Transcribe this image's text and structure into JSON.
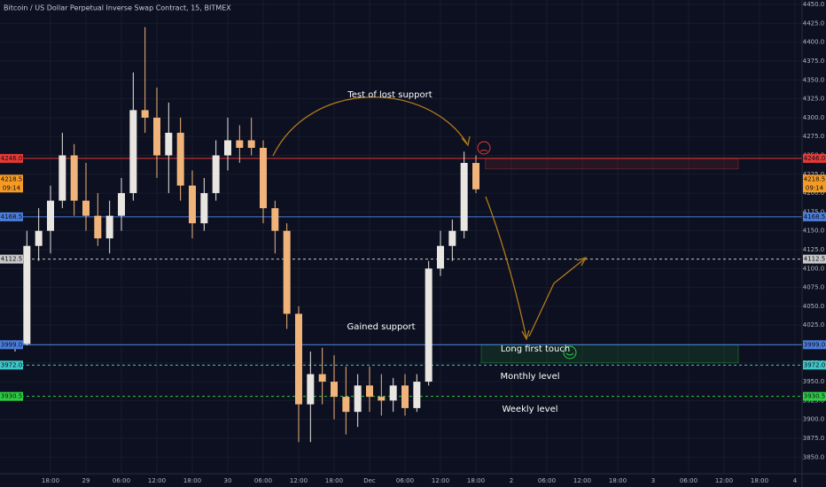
{
  "chart_data": {
    "type": "candlestick",
    "title": "Bitcoin / US Dollar Perpetual Inverse Swap Contract, 15, BITMEX",
    "x": [
      -6,
      -4,
      -2,
      0,
      2,
      4,
      6,
      8,
      10,
      12,
      14,
      16,
      18,
      20,
      22,
      24,
      26,
      28,
      30,
      32,
      34,
      36,
      38,
      40,
      42,
      44,
      46,
      48,
      50,
      52,
      54,
      56,
      58,
      60,
      62,
      64,
      66,
      68,
      70,
      72
    ],
    "open": [
      3998,
      4000,
      4130,
      4150,
      4190,
      4250,
      4190,
      4170,
      4140,
      4170,
      4200,
      4310,
      4300,
      4250,
      4280,
      4210,
      4160,
      4200,
      4250,
      4270,
      4270,
      4260,
      4180,
      4150,
      4040,
      3920,
      3960,
      3950,
      3930,
      3910,
      3945,
      3930,
      3925,
      3945,
      3915,
      3950,
      4100,
      4130,
      4150,
      4240
    ],
    "high": [
      4005,
      4150,
      4180,
      4210,
      4280,
      4265,
      4240,
      4200,
      4190,
      4220,
      4360,
      4420,
      4340,
      4320,
      4300,
      4230,
      4220,
      4270,
      4300,
      4290,
      4300,
      4270,
      4190,
      4160,
      4050,
      3990,
      3995,
      3985,
      3970,
      3960,
      3970,
      3960,
      3955,
      3960,
      3960,
      4110,
      4150,
      4165,
      4255,
      4250
    ],
    "low": [
      3990,
      3998,
      4110,
      4120,
      4180,
      4170,
      4150,
      4130,
      4120,
      4150,
      4190,
      4280,
      4220,
      4200,
      4190,
      4140,
      4150,
      4190,
      4230,
      4240,
      4250,
      4160,
      4120,
      4020,
      3870,
      3870,
      3920,
      3900,
      3880,
      3890,
      3910,
      3905,
      3910,
      3905,
      3910,
      3945,
      4090,
      4110,
      4140,
      4200
    ],
    "close": [
      4000,
      4130,
      4150,
      4190,
      4250,
      4190,
      4170,
      4140,
      4170,
      4200,
      4310,
      4300,
      4250,
      4280,
      4210,
      4160,
      4200,
      4250,
      4270,
      4260,
      4260,
      4180,
      4150,
      4040,
      3920,
      3960,
      3950,
      3930,
      3910,
      3945,
      3930,
      3925,
      3945,
      3915,
      3950,
      4100,
      4130,
      4150,
      4240,
      4205
    ],
    "up_color": "#e9e6e1",
    "down_color": "#f0b47a",
    "xlim": [
      -8.55,
      127.2
    ],
    "ylim": [
      3828,
      4456
    ],
    "xticks": [
      {
        "value": 0,
        "label": "18:00"
      },
      {
        "value": 6,
        "label": "29"
      },
      {
        "value": 12,
        "label": "06:00"
      },
      {
        "value": 18,
        "label": "12:00"
      },
      {
        "value": 24,
        "label": "18:00"
      },
      {
        "value": 30,
        "label": "30"
      },
      {
        "value": 36,
        "label": "06:00"
      },
      {
        "value": 42,
        "label": "12:00"
      },
      {
        "value": 48,
        "label": "18:00"
      },
      {
        "value": 54,
        "label": "Dec"
      },
      {
        "value": 60,
        "label": "06:00"
      },
      {
        "value": 66,
        "label": "12:00"
      },
      {
        "value": 72,
        "label": "18:00"
      },
      {
        "value": 78,
        "label": "2"
      },
      {
        "value": 84,
        "label": "06:00"
      },
      {
        "value": 90,
        "label": "12:00"
      },
      {
        "value": 96,
        "label": "18:00"
      },
      {
        "value": 102,
        "label": "3"
      },
      {
        "value": 108,
        "label": "06:00"
      },
      {
        "value": 114,
        "label": "12:00"
      },
      {
        "value": 120,
        "label": "18:00"
      },
      {
        "value": 126,
        "label": "4"
      }
    ],
    "yticks": [
      {
        "value": 3850,
        "label": "3850.0"
      },
      {
        "value": 3875,
        "label": "3875.0"
      },
      {
        "value": 3900,
        "label": "3900.0"
      },
      {
        "value": 3925,
        "label": "3925.0"
      },
      {
        "value": 3950,
        "label": "3950.0"
      },
      {
        "value": 3975,
        "label": "3975.0"
      },
      {
        "value": 4000,
        "label": "4000.0"
      },
      {
        "value": 4025,
        "label": "4025.0"
      },
      {
        "value": 4050,
        "label": "4050.0"
      },
      {
        "value": 4075,
        "label": "4075.0"
      },
      {
        "value": 4100,
        "label": "4100.0"
      },
      {
        "value": 4125,
        "label": "4125.0"
      },
      {
        "value": 4150,
        "label": "4150.0"
      },
      {
        "value": 4175,
        "label": "4175.0"
      },
      {
        "value": 4200,
        "label": "4200.0"
      },
      {
        "value": 4225,
        "label": "4225.0"
      },
      {
        "value": 4250,
        "label": "4250.0"
      },
      {
        "value": 4275,
        "label": "4275.0"
      },
      {
        "value": 4300,
        "label": "4300.0"
      },
      {
        "value": 4325,
        "label": "4325.0"
      },
      {
        "value": 4350,
        "label": "4350.0"
      },
      {
        "value": 4375,
        "label": "4375.0"
      },
      {
        "value": 4400,
        "label": "4400.0"
      },
      {
        "value": 4425,
        "label": "4425.0"
      },
      {
        "value": 4450,
        "label": "4450.0"
      }
    ],
    "grid": true,
    "levels": [
      {
        "value": 4246,
        "label": "4246.0",
        "color": "#e53935",
        "dashed": false
      },
      {
        "value": 4168.5,
        "label": "4168.5",
        "color": "#4a7ddb",
        "dashed": false
      },
      {
        "value": 4112.5,
        "label": "4112.5",
        "color": "#c8c8c8",
        "dashed": true
      },
      {
        "value": 3999,
        "label": "3999.0",
        "color": "#4a7ddb",
        "dashed": false
      },
      {
        "value": 3972,
        "label": "3972.0",
        "color": "#3fc7c7",
        "dashed": true
      },
      {
        "value": 3930.5,
        "label": "3930.5",
        "color": "#2ecc40",
        "dashed": true
      }
    ],
    "current": {
      "value": 4218.5,
      "label": "4218.5",
      "countdown": "09:14",
      "color": "#f59a23"
    },
    "zones": [
      {
        "x": [
          73.6,
          116.4
        ],
        "y": [
          4232,
          4246
        ],
        "color": "#e53935"
      },
      {
        "x": [
          72.9,
          116.4
        ],
        "y": [
          3975,
          3999
        ],
        "color": "#2ecc40"
      }
    ],
    "annotations": [
      "Test of lost support",
      "Gained support",
      "Long first touch",
      "Monthly level",
      "Weekly level"
    ]
  }
}
